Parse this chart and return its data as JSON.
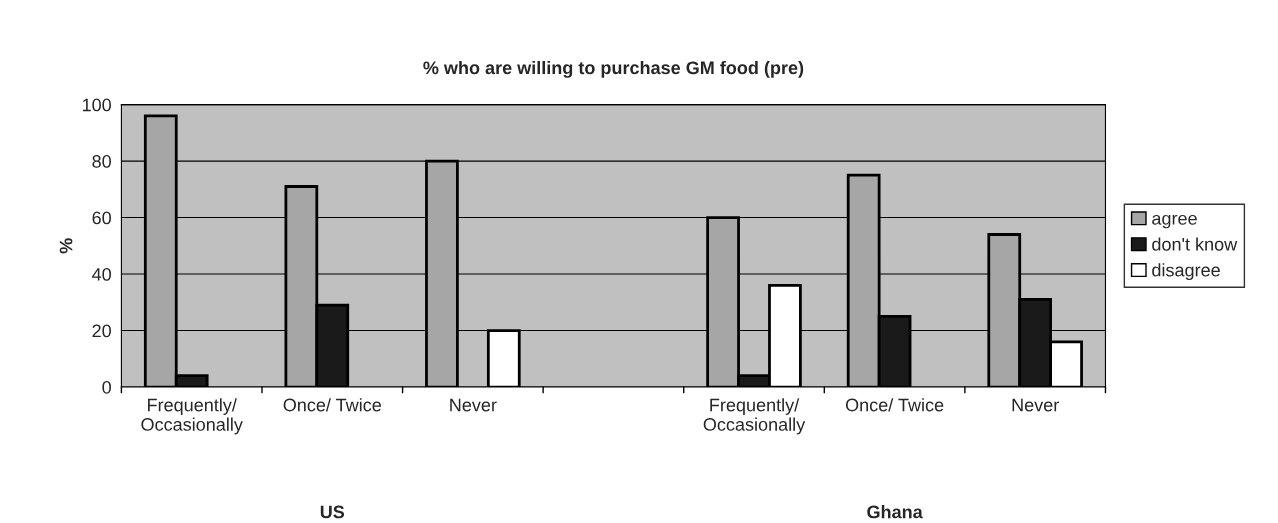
{
  "chart_data": {
    "type": "bar",
    "title": "% who are willing to purchase GM food (pre)",
    "ylabel": "%",
    "categories": [
      "Frequently/\nOccasionally",
      "Once/ Twice",
      "Never",
      null,
      "Frequently/\nOccasionally",
      "Once/ Twice",
      "Never"
    ],
    "series": [
      {
        "name": "agree",
        "color": "#a6a6a6",
        "values": [
          96,
          71,
          80,
          null,
          60,
          75,
          54
        ]
      },
      {
        "name": "don't know",
        "color": "#1a1a1a",
        "values": [
          4,
          29,
          null,
          null,
          4,
          25,
          31
        ]
      },
      {
        "name": "disagree",
        "color": "#ffffff",
        "values": [
          null,
          null,
          20,
          null,
          36,
          null,
          16
        ]
      }
    ],
    "annotations": [
      "US",
      "Ghana"
    ],
    "ylim": [
      0,
      100
    ],
    "yticks": [
      0,
      20,
      40,
      60,
      80,
      100
    ],
    "grid": "y",
    "legend": "right"
  }
}
